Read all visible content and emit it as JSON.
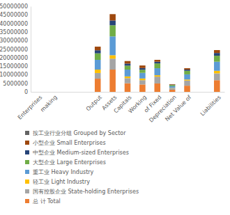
{
  "chart_data": {
    "type": "bar",
    "stacked": true,
    "legend": "bottom",
    "grid": false,
    "categories": [
      "Enterprises",
      "making",
      null,
      null,
      "Output",
      "Assets",
      "Capitals",
      "Working",
      "of Fixed",
      "Depreciation",
      "Net Value of",
      null,
      "Liabilities"
    ],
    "ylim": [
      0,
      50000000
    ],
    "yticks": [
      0,
      5000000,
      10000000,
      15000000,
      20000000,
      25000000,
      30000000,
      35000000,
      40000000,
      45000000,
      50000000
    ],
    "series": [
      {
        "name": "总 计 Total",
        "color": "#ed7d31",
        "values": [
          null,
          null,
          null,
          null,
          7700000,
          13000000,
          5000000,
          4300000,
          4900000,
          1200000,
          3600000,
          null,
          6800000
        ]
      },
      {
        "name": "国有控股企业 State-holding Enterprises",
        "color": "#a5a5a5",
        "values": [
          null,
          null,
          null,
          null,
          3300000,
          6400000,
          3000000,
          2500000,
          4000000,
          900000,
          3000000,
          null,
          4000000
        ]
      },
      {
        "name": "轻工业 Light Industry",
        "color": "#ffc000",
        "values": [
          null,
          null,
          null,
          null,
          2000000,
          2000000,
          1000000,
          1000000,
          800000,
          200000,
          600000,
          null,
          1500000
        ]
      },
      {
        "name": "重工业 Heavy Industry",
        "color": "#5b9bd5",
        "values": [
          null,
          null,
          null,
          null,
          5700000,
          11000000,
          4000000,
          3300000,
          4100000,
          1000000,
          3000000,
          null,
          5300000
        ]
      },
      {
        "name": "大型企业 Large Enterprises",
        "color": "#70ad47",
        "values": [
          null,
          null,
          null,
          null,
          3800000,
          6500000,
          2300000,
          1800000,
          2800000,
          700000,
          2100000,
          null,
          3500000
        ]
      },
      {
        "name": "中型企业 Medium-sized Enterprises",
        "color": "#264478",
        "values": [
          null,
          null,
          null,
          null,
          1800000,
          2800000,
          1200000,
          1000000,
          1000000,
          200000,
          700000,
          null,
          1600000
        ]
      },
      {
        "name": "小型企业 Small Enterprises",
        "color": "#9e480e",
        "values": [
          null,
          null,
          null,
          null,
          2100000,
          3700000,
          1500000,
          1500000,
          1100000,
          300000,
          800000,
          null,
          1700000
        ]
      },
      {
        "name": "按工业行业分组 Grouped by Sector",
        "color": "#636363",
        "values": [
          null,
          null,
          null,
          null,
          null,
          null,
          null,
          null,
          null,
          null,
          null,
          null,
          null
        ]
      }
    ]
  }
}
